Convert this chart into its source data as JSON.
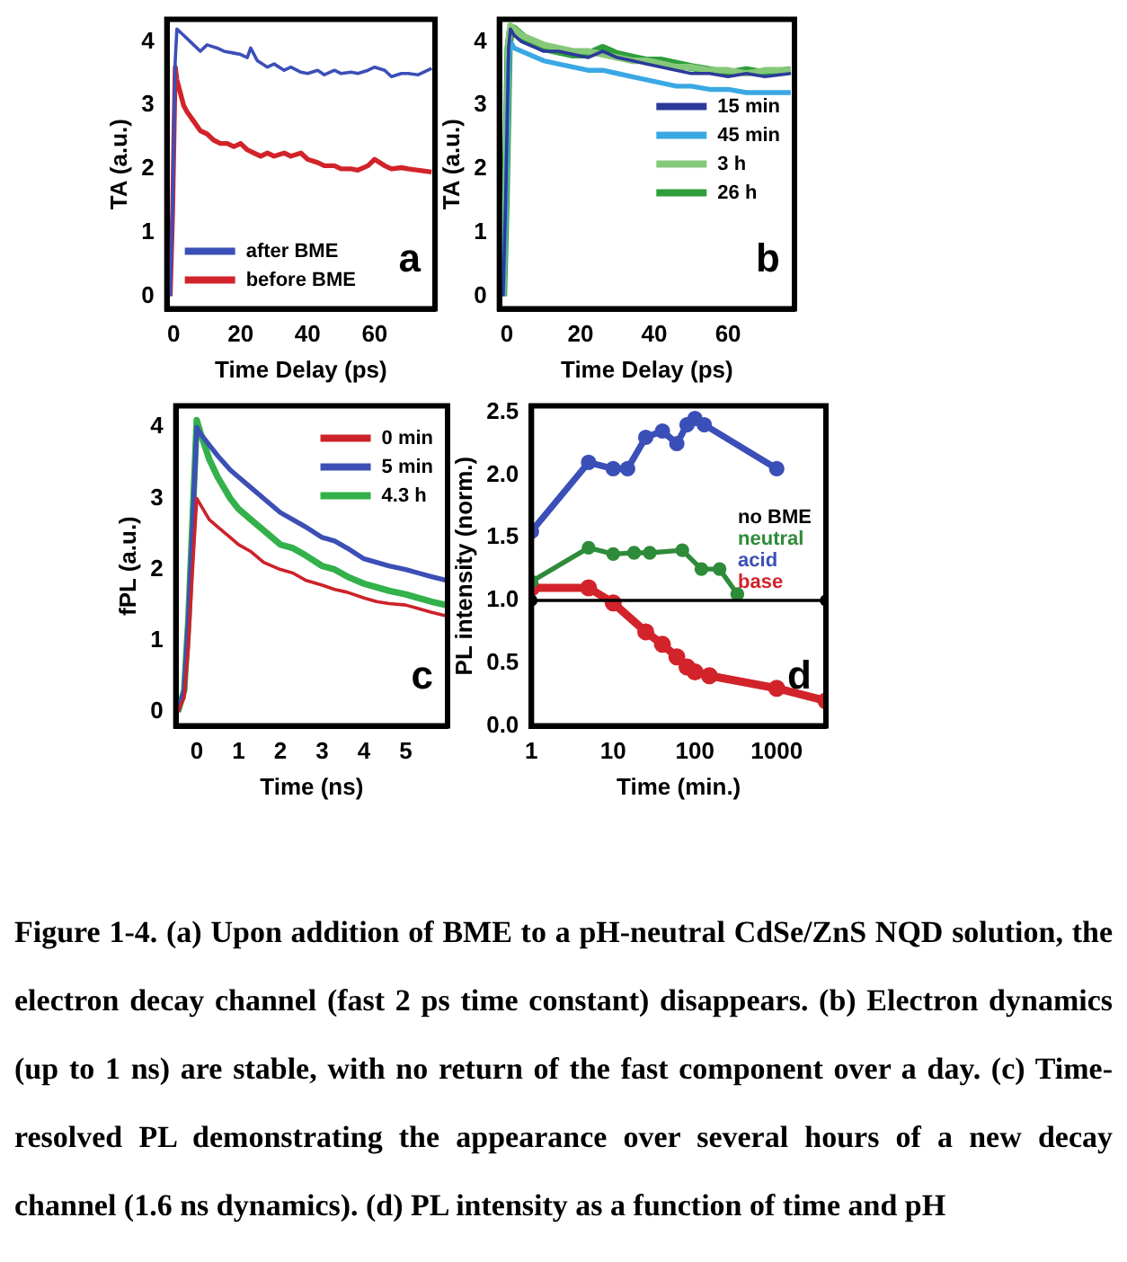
{
  "chart_data": [
    {
      "type": "line",
      "xlabel": "Time Delay (ps)",
      "ylabel": "TA (a.u.)",
      "xlim": [
        -2,
        78
      ],
      "xticks": [
        0,
        20,
        40,
        60
      ],
      "ylim": [
        -0.2,
        4.35
      ],
      "yticks": [
        0,
        1,
        2,
        3,
        4
      ],
      "legend": "bottom left",
      "annotations": [
        "a"
      ],
      "series": [
        {
          "name": "after BME",
          "color": "#3b4fb8",
          "x": [
            -1,
            -0.3,
            0.5,
            1,
            2,
            3,
            5,
            8,
            10,
            13,
            15,
            18,
            20,
            22,
            23,
            25,
            28,
            30,
            33,
            35,
            38,
            40,
            43,
            45,
            48,
            50,
            53,
            55,
            58,
            60,
            63,
            65,
            68,
            70,
            73,
            77
          ],
          "values": [
            0,
            1.4,
            3.7,
            4.2,
            4.15,
            4.1,
            4.0,
            3.85,
            3.95,
            3.9,
            3.85,
            3.82,
            3.8,
            3.75,
            3.9,
            3.7,
            3.6,
            3.65,
            3.55,
            3.6,
            3.52,
            3.5,
            3.55,
            3.48,
            3.55,
            3.5,
            3.52,
            3.5,
            3.55,
            3.6,
            3.55,
            3.45,
            3.5,
            3.5,
            3.48,
            3.58
          ]
        },
        {
          "name": "before BME",
          "color": "#d2232a",
          "x": [
            -1,
            -0.3,
            0.5,
            1,
            2,
            3,
            4,
            6,
            8,
            10,
            12,
            14,
            16,
            18,
            20,
            22,
            24,
            26,
            28,
            30,
            33,
            35,
            38,
            40,
            43,
            45,
            48,
            50,
            53,
            55,
            58,
            60,
            63,
            65,
            68,
            70,
            73,
            77
          ],
          "values": [
            0,
            1.3,
            3.6,
            3.4,
            3.2,
            3.0,
            2.9,
            2.75,
            2.6,
            2.55,
            2.45,
            2.4,
            2.4,
            2.35,
            2.4,
            2.3,
            2.25,
            2.2,
            2.25,
            2.2,
            2.25,
            2.2,
            2.25,
            2.15,
            2.1,
            2.05,
            2.05,
            2.0,
            2.0,
            1.98,
            2.05,
            2.15,
            2.05,
            2.0,
            2.02,
            2.0,
            1.98,
            1.95
          ]
        }
      ]
    },
    {
      "type": "line",
      "xlabel": "Time Delay (ps)",
      "ylabel": "TA (a.u.)",
      "xlim": [
        -2,
        78
      ],
      "xticks": [
        0,
        20,
        40,
        60
      ],
      "ylim": [
        -0.2,
        4.35
      ],
      "yticks": [
        0,
        1,
        2,
        3,
        4
      ],
      "legend": "right",
      "annotations": [
        "b"
      ],
      "series": [
        {
          "name": "15 min",
          "color": "#2b3a9a",
          "x": [
            -1,
            -0.3,
            0.5,
            1,
            2,
            4,
            6,
            8,
            10,
            14,
            18,
            22,
            26,
            30,
            34,
            38,
            42,
            46,
            50,
            55,
            60,
            65,
            70,
            77
          ],
          "values": [
            0,
            1.5,
            3.9,
            4.2,
            4.1,
            4.0,
            3.95,
            3.9,
            3.85,
            3.85,
            3.8,
            3.75,
            3.85,
            3.75,
            3.7,
            3.65,
            3.6,
            3.55,
            3.5,
            3.5,
            3.45,
            3.5,
            3.45,
            3.5
          ]
        },
        {
          "name": "45 min",
          "color": "#3aa8e4",
          "x": [
            -1,
            -0.3,
            0.5,
            1,
            2,
            4,
            6,
            8,
            10,
            14,
            18,
            22,
            26,
            30,
            34,
            38,
            42,
            46,
            50,
            55,
            60,
            65,
            70,
            77
          ],
          "values": [
            0,
            1.3,
            3.7,
            4.0,
            3.9,
            3.85,
            3.8,
            3.75,
            3.7,
            3.65,
            3.6,
            3.55,
            3.55,
            3.5,
            3.45,
            3.4,
            3.35,
            3.3,
            3.3,
            3.25,
            3.25,
            3.2,
            3.2,
            3.2
          ]
        },
        {
          "name": "3 h",
          "color": "#86c87a",
          "x": [
            -1,
            -0.3,
            0.5,
            1,
            2,
            4,
            6,
            8,
            10,
            14,
            18,
            22,
            26,
            30,
            34,
            38,
            42,
            46,
            50,
            55,
            60,
            65,
            70,
            77
          ],
          "values": [
            0,
            1.6,
            4.0,
            4.25,
            4.2,
            4.1,
            4.05,
            4.0,
            3.95,
            3.9,
            3.85,
            3.85,
            3.8,
            3.75,
            3.7,
            3.7,
            3.65,
            3.6,
            3.6,
            3.55,
            3.55,
            3.5,
            3.55,
            3.55
          ]
        },
        {
          "name": "26 h",
          "color": "#2e9e3a",
          "x": [
            -1,
            -0.3,
            0.5,
            1,
            2,
            4,
            6,
            8,
            10,
            14,
            18,
            22,
            26,
            30,
            34,
            38,
            42,
            46,
            50,
            55,
            60,
            65,
            70,
            77
          ],
          "values": [
            0,
            1.5,
            3.9,
            4.15,
            4.2,
            4.1,
            4.0,
            3.95,
            3.9,
            3.85,
            3.8,
            3.8,
            3.9,
            3.8,
            3.75,
            3.7,
            3.7,
            3.65,
            3.6,
            3.55,
            3.5,
            3.55,
            3.5,
            3.55
          ]
        }
      ]
    },
    {
      "type": "line",
      "xlabel": "Time (ns)",
      "ylabel": "fPL (a.u.)",
      "xlim": [
        -0.5,
        6
      ],
      "xticks": [
        0,
        1,
        2,
        3,
        4,
        5
      ],
      "ylim": [
        -0.2,
        4.3
      ],
      "yticks": [
        0,
        1,
        2,
        3,
        4
      ],
      "legend": "top right",
      "annotations": [
        "c"
      ],
      "series": [
        {
          "name": "0 min",
          "color": "#cc2229",
          "x": [
            -0.45,
            -0.3,
            -0.2,
            -0.1,
            0,
            0.1,
            0.3,
            0.5,
            0.8,
            1,
            1.3,
            1.6,
            2,
            2.3,
            2.6,
            3,
            3.3,
            3.6,
            4,
            4.3,
            4.6,
            5,
            5.3,
            5.6,
            5.95
          ],
          "values": [
            0,
            0.2,
            0.9,
            2.0,
            3.0,
            2.9,
            2.7,
            2.6,
            2.45,
            2.35,
            2.25,
            2.1,
            2.0,
            1.95,
            1.85,
            1.78,
            1.72,
            1.68,
            1.6,
            1.55,
            1.52,
            1.5,
            1.45,
            1.4,
            1.35
          ]
        },
        {
          "name": "5 min",
          "color": "#3c4fb5",
          "x": [
            -0.45,
            -0.3,
            -0.2,
            -0.1,
            0,
            0.1,
            0.3,
            0.5,
            0.8,
            1,
            1.3,
            1.6,
            2,
            2.3,
            2.6,
            3,
            3.3,
            3.6,
            4,
            4.3,
            4.6,
            5,
            5.3,
            5.6,
            5.95
          ],
          "values": [
            0,
            0.3,
            1.3,
            2.6,
            4.0,
            3.9,
            3.75,
            3.6,
            3.4,
            3.3,
            3.15,
            3.0,
            2.8,
            2.7,
            2.6,
            2.45,
            2.4,
            2.3,
            2.15,
            2.1,
            2.05,
            2.0,
            1.95,
            1.9,
            1.85
          ]
        },
        {
          "name": "4.3 h",
          "color": "#33b14a",
          "x": [
            -0.45,
            -0.3,
            -0.2,
            -0.1,
            0,
            0.1,
            0.3,
            0.5,
            0.8,
            1,
            1.3,
            1.6,
            2,
            2.3,
            2.6,
            3,
            3.3,
            3.6,
            4,
            4.3,
            4.6,
            5,
            5.3,
            5.6,
            5.95
          ],
          "values": [
            0,
            0.3,
            1.3,
            2.7,
            4.1,
            3.9,
            3.55,
            3.3,
            3.0,
            2.85,
            2.7,
            2.55,
            2.35,
            2.3,
            2.2,
            2.05,
            2.0,
            1.9,
            1.8,
            1.75,
            1.7,
            1.65,
            1.6,
            1.55,
            1.5
          ]
        }
      ]
    },
    {
      "type": "line",
      "xlabel": "Time (min.)",
      "ylabel": "PL intensity (norm.)",
      "log": "x",
      "xlim": [
        1,
        4000
      ],
      "xticks": [
        1,
        10,
        100,
        1000
      ],
      "ylim": [
        0,
        2.55
      ],
      "yticks": [
        {
          "value": 0,
          "label": "0.0"
        },
        {
          "value": 0.5,
          "label": "0.5"
        },
        {
          "value": 1,
          "label": "1.0"
        },
        {
          "value": 1.5,
          "label": "1.5"
        },
        {
          "value": 2,
          "label": "2.0"
        },
        {
          "value": 2.5,
          "label": "2.5"
        }
      ],
      "legend": "right",
      "marker": "circle",
      "annotations": [
        "d"
      ],
      "series": [
        {
          "name": "no BME",
          "color": "#000000",
          "x": [
            1,
            4000
          ],
          "values": [
            1,
            1
          ]
        },
        {
          "name": "neutral",
          "color": "#2e8b3a",
          "x": [
            1,
            5,
            10,
            18,
            28,
            70,
            120,
            200,
            330
          ],
          "values": [
            1.15,
            1.42,
            1.37,
            1.38,
            1.38,
            1.4,
            1.25,
            1.25,
            1.05
          ]
        },
        {
          "name": "acid",
          "color": "#3b4fb8",
          "x": [
            1,
            5,
            10,
            15,
            25,
            40,
            60,
            80,
            100,
            130,
            1000
          ],
          "values": [
            1.55,
            2.1,
            2.05,
            2.05,
            2.3,
            2.35,
            2.25,
            2.4,
            2.45,
            2.4,
            2.05
          ]
        },
        {
          "name": "base",
          "color": "#d2232a",
          "x": [
            1,
            5,
            10,
            25,
            40,
            60,
            80,
            100,
            150,
            1000,
            4000
          ],
          "values": [
            1.1,
            1.1,
            0.98,
            0.75,
            0.65,
            0.55,
            0.47,
            0.43,
            0.4,
            0.3,
            0.2
          ]
        }
      ]
    },
    {
      "type": "other",
      "annotations": [
        "Figure 1-4. (a) Upon addition of BME to a pH-neutral CdSe/ZnS NQD solution, the electron decay channel (fast 2 ps time constant) disappears. (b) Electron dynamics (up to 1 ns) are stable, with no return of the fast component over a day. (c) Time-resolved PL demonstrating the appearance over several hours of a new decay channel (1.6 ns dynamics). (d) PL intensity as a function of time and pH"
      ]
    }
  ]
}
